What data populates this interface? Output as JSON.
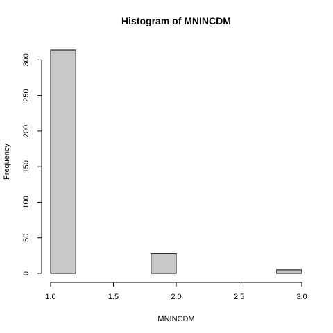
{
  "chart_data": {
    "type": "bar",
    "title": "Histogram of MNINCDM",
    "xlabel": "MNINCDM",
    "ylabel": "Frequency",
    "bins": [
      {
        "start": 1.0,
        "end": 1.2,
        "count": 314
      },
      {
        "start": 1.2,
        "end": 1.4,
        "count": 0
      },
      {
        "start": 1.4,
        "end": 1.6,
        "count": 0
      },
      {
        "start": 1.6,
        "end": 1.8,
        "count": 0
      },
      {
        "start": 1.8,
        "end": 2.0,
        "count": 28
      },
      {
        "start": 2.0,
        "end": 2.2,
        "count": 0
      },
      {
        "start": 2.2,
        "end": 2.4,
        "count": 0
      },
      {
        "start": 2.4,
        "end": 2.6,
        "count": 0
      },
      {
        "start": 2.6,
        "end": 2.8,
        "count": 0
      },
      {
        "start": 2.8,
        "end": 3.0,
        "count": 5
      }
    ],
    "xlim": [
      1.0,
      3.0
    ],
    "ylim": [
      0,
      314
    ],
    "xticks": [
      1.0,
      1.5,
      2.0,
      2.5,
      3.0
    ],
    "xtick_labels": [
      "1.0",
      "1.5",
      "2.0",
      "2.5",
      "3.0"
    ],
    "yticks": [
      0,
      50,
      100,
      150,
      200,
      250,
      300
    ],
    "ytick_labels": [
      "0",
      "50",
      "100",
      "150",
      "200",
      "250",
      "300"
    ],
    "bar_fill": "#c8c8c8",
    "bar_stroke": "#000000",
    "grid": false,
    "legend": "none"
  }
}
